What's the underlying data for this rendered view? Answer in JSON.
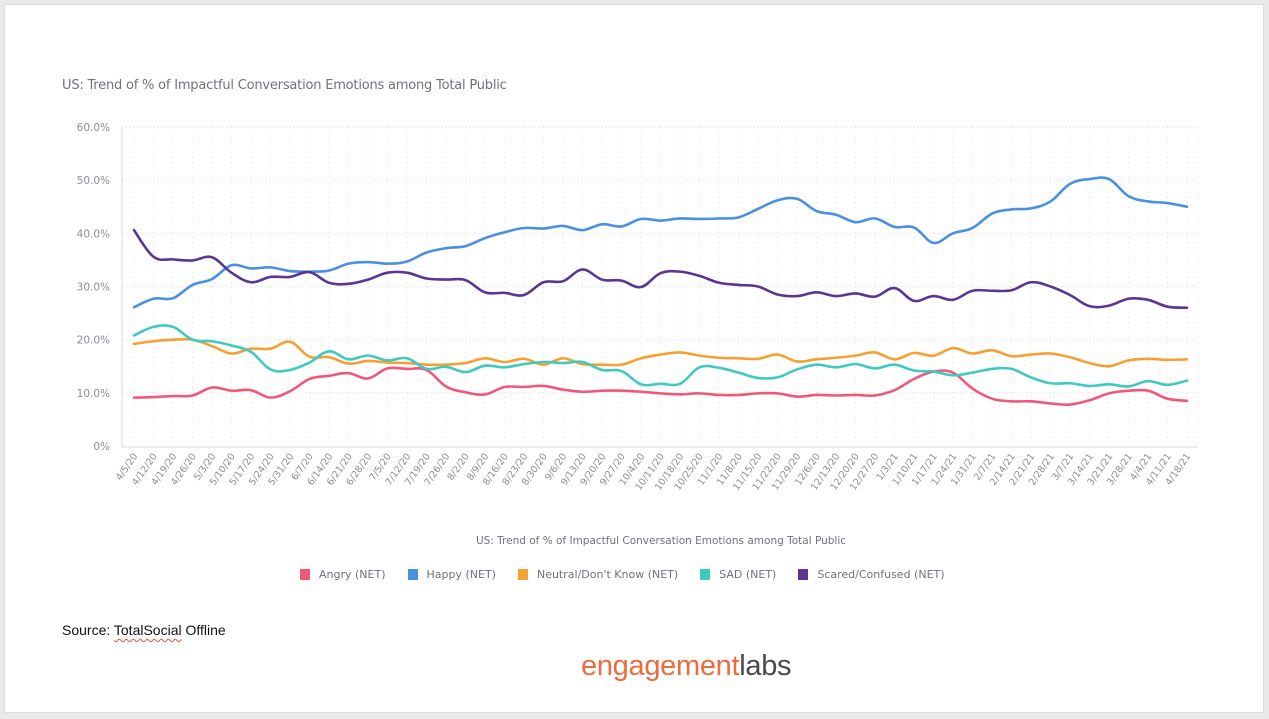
{
  "slide": {
    "source_prefix": "Source: ",
    "source_name": "TotalSocial",
    "source_suffix": " Offline",
    "logo_part1": "engagement",
    "logo_part2": "labs"
  },
  "chart_data": {
    "type": "line",
    "title": "US: Trend of % of Impactful Conversation Emotions  among Total Public",
    "xlabel": "US: Trend of % of Impactful Conversation Emotions among Total Public",
    "ylabel": "",
    "ylim": [
      0,
      60
    ],
    "yticks": [
      "0%",
      "10.0%",
      "20.0%",
      "30.0%",
      "40.0%",
      "50.0%",
      "60.0%"
    ],
    "grid": true,
    "legend_position": "bottom",
    "x": [
      "4/5/20",
      "4/12/20",
      "4/19/20",
      "4/26/20",
      "5/3/20",
      "5/10/20",
      "5/17/20",
      "5/24/20",
      "5/31/20",
      "6/7/20",
      "6/14/20",
      "6/21/20",
      "6/28/20",
      "7/5/20",
      "7/12/20",
      "7/19/20",
      "7/26/20",
      "8/2/20",
      "8/9/20",
      "8/16/20",
      "8/23/20",
      "8/30/20",
      "9/6/20",
      "9/13/20",
      "9/20/20",
      "9/27/20",
      "10/4/20",
      "10/11/20",
      "10/18/20",
      "10/25/20",
      "11/1/20",
      "11/8/20",
      "11/15/20",
      "11/22/20",
      "11/29/20",
      "12/6/20",
      "12/13/20",
      "12/20/20",
      "12/27/20",
      "1/3/21",
      "1/10/21",
      "1/17/21",
      "1/24/21",
      "1/31/21",
      "2/7/21",
      "2/14/21",
      "2/21/21",
      "2/28/21",
      "3/7/21",
      "3/14/21",
      "3/21/21",
      "3/28/21",
      "4/4/21",
      "4/11/21",
      "4/18/21"
    ],
    "series": [
      {
        "name": "Angry (NET)",
        "color": "#f0587a",
        "values": [
          9.1,
          9.2,
          9.4,
          9.5,
          11.0,
          10.4,
          10.5,
          9.1,
          10.3,
          12.6,
          13.2,
          13.7,
          12.7,
          14.6,
          14.5,
          14.3,
          11.2,
          10.1,
          9.7,
          11.1,
          11.1,
          11.3,
          10.6,
          10.2,
          10.4,
          10.4,
          10.2,
          9.9,
          9.7,
          9.9,
          9.6,
          9.6,
          9.9,
          9.9,
          9.3,
          9.6,
          9.5,
          9.6,
          9.5,
          10.5,
          12.6,
          14.0,
          13.8,
          10.8,
          8.9,
          8.4,
          8.4,
          8.0,
          7.8,
          8.6,
          9.9,
          10.4,
          10.4,
          8.9,
          8.5
        ]
      },
      {
        "name": "Happy (NET)",
        "color": "#4a90e2",
        "values": [
          26.1,
          27.7,
          27.8,
          30.3,
          31.4,
          34.0,
          33.4,
          33.6,
          32.9,
          32.8,
          33.0,
          34.3,
          34.6,
          34.3,
          34.7,
          36.4,
          37.2,
          37.6,
          39.1,
          40.2,
          41.0,
          40.9,
          41.4,
          40.6,
          41.7,
          41.3,
          42.7,
          42.4,
          42.8,
          42.7,
          42.8,
          43.0,
          44.6,
          46.2,
          46.5,
          44.2,
          43.5,
          42.1,
          42.8,
          41.2,
          41.1,
          38.2,
          40.0,
          41.0,
          43.7,
          44.5,
          44.7,
          46.0,
          49.3,
          50.2,
          50.2,
          47.0,
          46.0,
          45.7,
          45.0
        ]
      },
      {
        "name": "Neutral/Don't Know (NET)",
        "color": "#f5a030",
        "values": [
          19.2,
          19.7,
          20.0,
          20.0,
          18.8,
          17.4,
          18.3,
          18.3,
          19.6,
          16.8,
          16.7,
          15.5,
          16.0,
          15.7,
          15.6,
          15.3,
          15.3,
          15.6,
          16.5,
          15.8,
          16.4,
          15.3,
          16.5,
          15.4,
          15.3,
          15.3,
          16.5,
          17.2,
          17.6,
          17.0,
          16.6,
          16.5,
          16.4,
          17.2,
          15.9,
          16.3,
          16.6,
          17.0,
          17.6,
          16.3,
          17.5,
          17.0,
          18.4,
          17.4,
          18.0,
          16.9,
          17.2,
          17.4,
          16.7,
          15.6,
          15.0,
          16.1,
          16.4,
          16.2,
          16.3
        ]
      },
      {
        "name": "SAD (NET)",
        "color": "#3ec9c1",
        "values": [
          20.8,
          22.4,
          22.4,
          20.0,
          19.7,
          18.9,
          17.7,
          14.4,
          14.3,
          15.7,
          17.8,
          16.3,
          17.0,
          16.1,
          16.5,
          14.5,
          14.9,
          13.9,
          15.1,
          14.8,
          15.4,
          15.8,
          15.6,
          15.8,
          14.3,
          14.1,
          11.6,
          11.7,
          11.7,
          14.8,
          14.7,
          13.8,
          12.8,
          12.9,
          14.4,
          15.3,
          14.8,
          15.4,
          14.6,
          15.3,
          14.2,
          14.0,
          13.3,
          13.8,
          14.5,
          14.5,
          12.9,
          11.8,
          11.8,
          11.3,
          11.6,
          11.2,
          12.2,
          11.5,
          12.3
        ]
      },
      {
        "name": "Scared/Confused (NET)",
        "color": "#5b3592",
        "values": [
          40.6,
          35.6,
          35.1,
          34.9,
          35.5,
          32.6,
          30.8,
          31.8,
          31.8,
          32.7,
          30.7,
          30.5,
          31.3,
          32.6,
          32.6,
          31.5,
          31.3,
          31.2,
          28.9,
          28.8,
          28.4,
          30.8,
          31.0,
          33.2,
          31.3,
          31.1,
          29.9,
          32.5,
          32.8,
          32.0,
          30.7,
          30.3,
          30.0,
          28.5,
          28.2,
          28.9,
          28.2,
          28.7,
          28.1,
          29.7,
          27.3,
          28.2,
          27.5,
          29.2,
          29.2,
          29.3,
          30.8,
          30.0,
          28.4,
          26.3,
          26.4,
          27.7,
          27.5,
          26.2,
          26.0
        ]
      }
    ]
  }
}
